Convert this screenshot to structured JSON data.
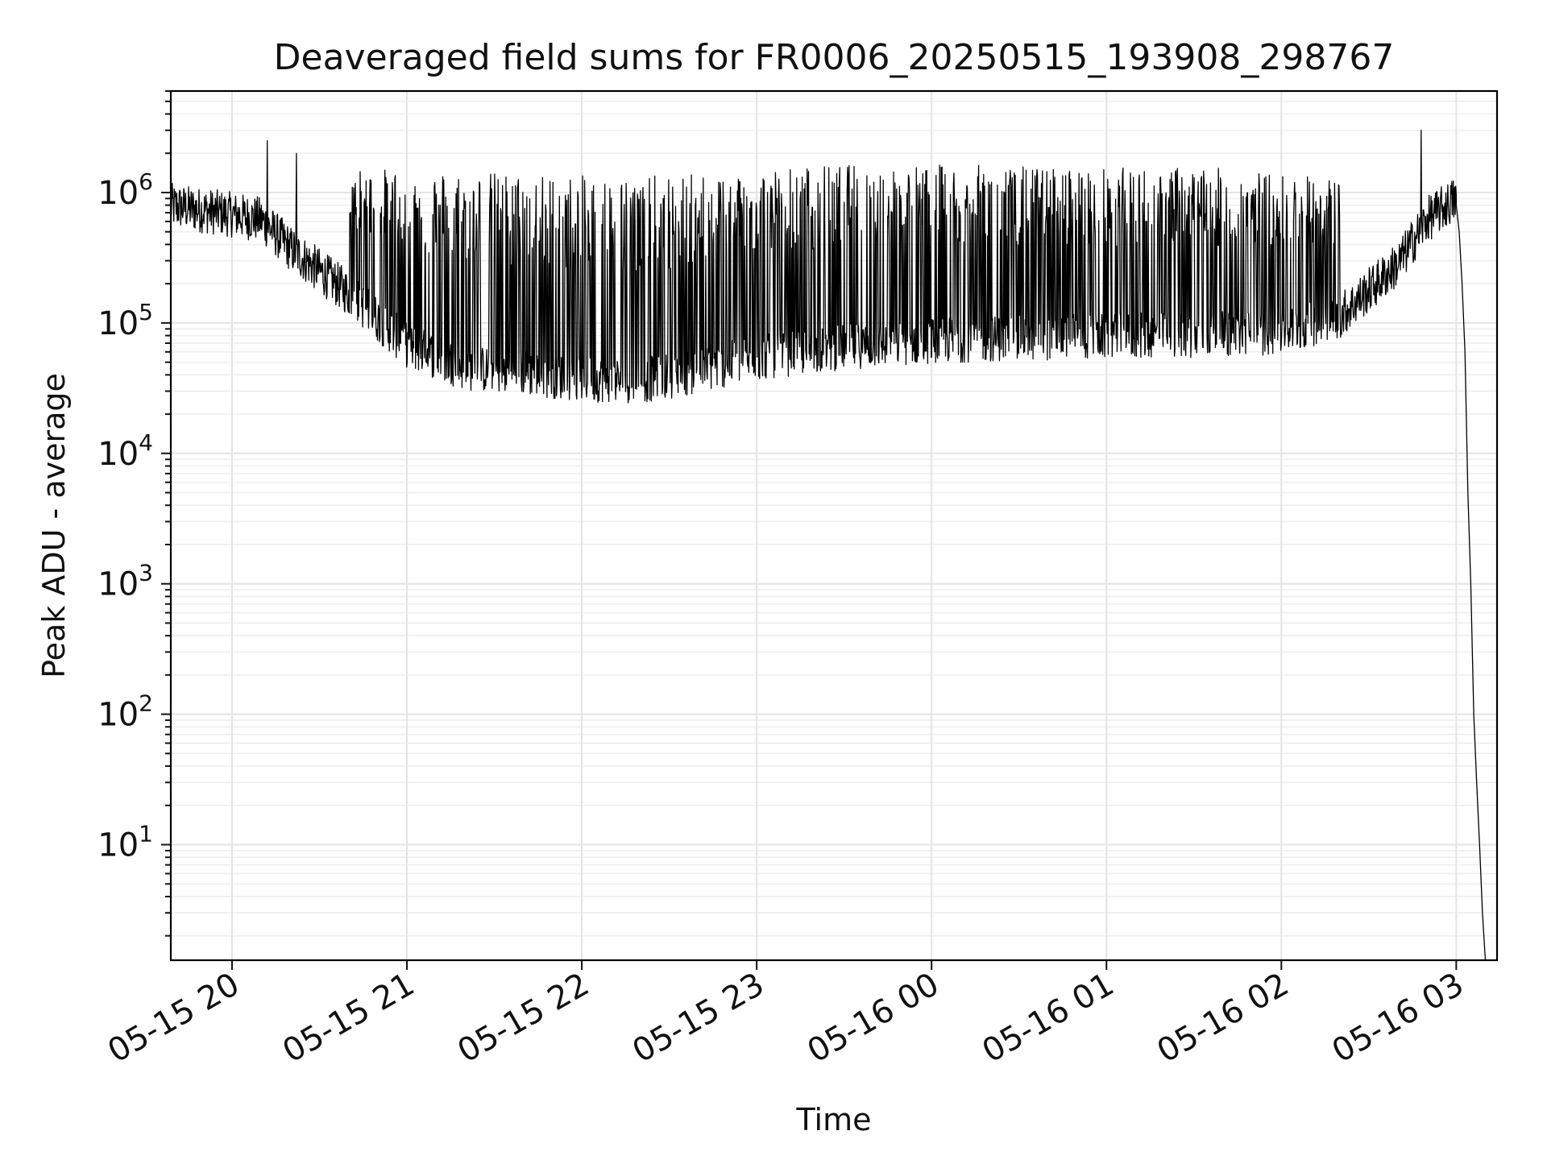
{
  "chart_data": {
    "type": "line",
    "title": "Deaveraged field sums for FR0006_20250515_193908_298767",
    "xlabel": "Time",
    "ylabel": "Peak ADU - average",
    "y_scale": "log",
    "ylim": [
      1.3,
      6000000
    ],
    "xlim": [
      "2025-05-15 19:39",
      "2025-05-16 03:14"
    ],
    "x_ticks": [
      "2025-05-15 20:00",
      "2025-05-15 21:00",
      "2025-05-15 22:00",
      "2025-05-15 23:00",
      "2025-05-16 00:00",
      "2025-05-16 01:00",
      "2025-05-16 02:00",
      "2025-05-16 03:00"
    ],
    "x_tick_labels": [
      "05-15 20",
      "05-15 21",
      "05-15 22",
      "05-15 23",
      "05-16 00",
      "05-16 01",
      "05-16 02",
      "05-16 03"
    ],
    "y_ticks": [
      10,
      100,
      1000,
      10000,
      100000,
      1000000
    ],
    "y_tick_labels": [
      {
        "base": "10",
        "exp": "1"
      },
      {
        "base": "10",
        "exp": "2"
      },
      {
        "base": "10",
        "exp": "3"
      },
      {
        "base": "10",
        "exp": "4"
      },
      {
        "base": "10",
        "exp": "5"
      },
      {
        "base": "10",
        "exp": "6"
      }
    ],
    "grid": true,
    "legend": "none",
    "series": [
      {
        "color": "#000000",
        "envelope_low": {
          "x": [
            "2025-05-15 19:39",
            "2025-05-15 20:00",
            "2025-05-15 20:10",
            "2025-05-15 20:20",
            "2025-05-15 20:40",
            "2025-05-15 21:00",
            "2025-05-15 21:20",
            "2025-05-15 21:40",
            "2025-05-15 22:00",
            "2025-05-15 22:20",
            "2025-05-15 22:40",
            "2025-05-15 23:00",
            "2025-05-15 23:30",
            "2025-05-16 00:00",
            "2025-05-16 00:30",
            "2025-05-16 01:00",
            "2025-05-16 01:30",
            "2025-05-16 02:00",
            "2025-05-16 02:20",
            "2025-05-16 02:40",
            "2025-05-16 02:50",
            "2025-05-16 03:00"
          ],
          "y": [
            700000,
            600000,
            550000,
            330000,
            150000,
            60000,
            40000,
            37000,
            33000,
            32000,
            38000,
            48000,
            58000,
            65000,
            68000,
            70000,
            72000,
            75000,
            100000,
            250000,
            550000,
            800000
          ]
        },
        "envelope_high": {
          "x": [
            "2025-05-15 20:40",
            "2025-05-15 21:00",
            "2025-05-15 21:30",
            "2025-05-15 22:00",
            "2025-05-15 22:30",
            "2025-05-15 23:00",
            "2025-05-15 23:30",
            "2025-05-16 00:00",
            "2025-05-16 00:30",
            "2025-05-16 01:00",
            "2025-05-16 01:30",
            "2025-05-16 02:00",
            "2025-05-16 02:20"
          ],
          "y": [
            1500000,
            1550000,
            1450000,
            1350000,
            1350000,
            1550000,
            1650000,
            1650000,
            1600000,
            1550000,
            1600000,
            1400000,
            1300000
          ]
        },
        "peaks": {
          "x": [
            "2025-05-15 20:12",
            "2025-05-15 20:22",
            "2025-05-16 02:48"
          ],
          "y": [
            2500000,
            2000000,
            3000000
          ]
        },
        "tail": {
          "x": [
            "2025-05-16 03:00",
            "2025-05-16 03:01",
            "2025-05-16 03:02",
            "2025-05-16 03:03",
            "2025-05-16 03:04",
            "2025-05-16 03:05",
            "2025-05-16 03:06",
            "2025-05-16 03:07",
            "2025-05-16 03:08",
            "2025-05-16 03:09",
            "2025-05-16 03:10"
          ],
          "y": [
            800000,
            500000,
            200000,
            60000,
            5000,
            1000,
            100,
            30,
            10,
            3,
            1.3
          ]
        }
      }
    ]
  }
}
